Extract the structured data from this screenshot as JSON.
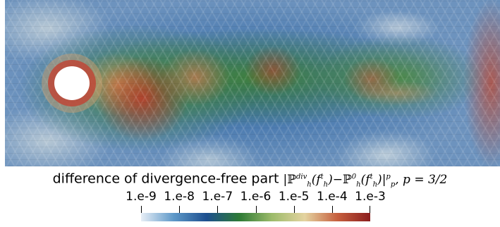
{
  "caption": {
    "prefix": "difference of divergence-free part",
    "formula_parts": {
      "bar_open": "|",
      "P": "ℙ",
      "div": "div",
      "h": "h",
      "paren_open": "(",
      "f": "f",
      "t": "t",
      "paren_close": ")",
      "minus": "−",
      "zero": "0",
      "bar_close": "|",
      "p_exp": "p",
      "p_sub": "p",
      "comma_p": ", ",
      "p_eq": "p",
      "eq_value": " = 3/2"
    }
  },
  "colorbar": {
    "tick_labels": [
      "1.e-9",
      "1.e-8",
      "1.e-7",
      "1.e-6",
      "1.e-5",
      "1.e-4",
      "1.e-3"
    ],
    "colormap": [
      "#e7eef6",
      "#5d98c8",
      "#1d4f8f",
      "#2d7a35",
      "#9cbb6a",
      "#e4d3a0",
      "#c65f3e",
      "#8b1e1e"
    ]
  }
}
